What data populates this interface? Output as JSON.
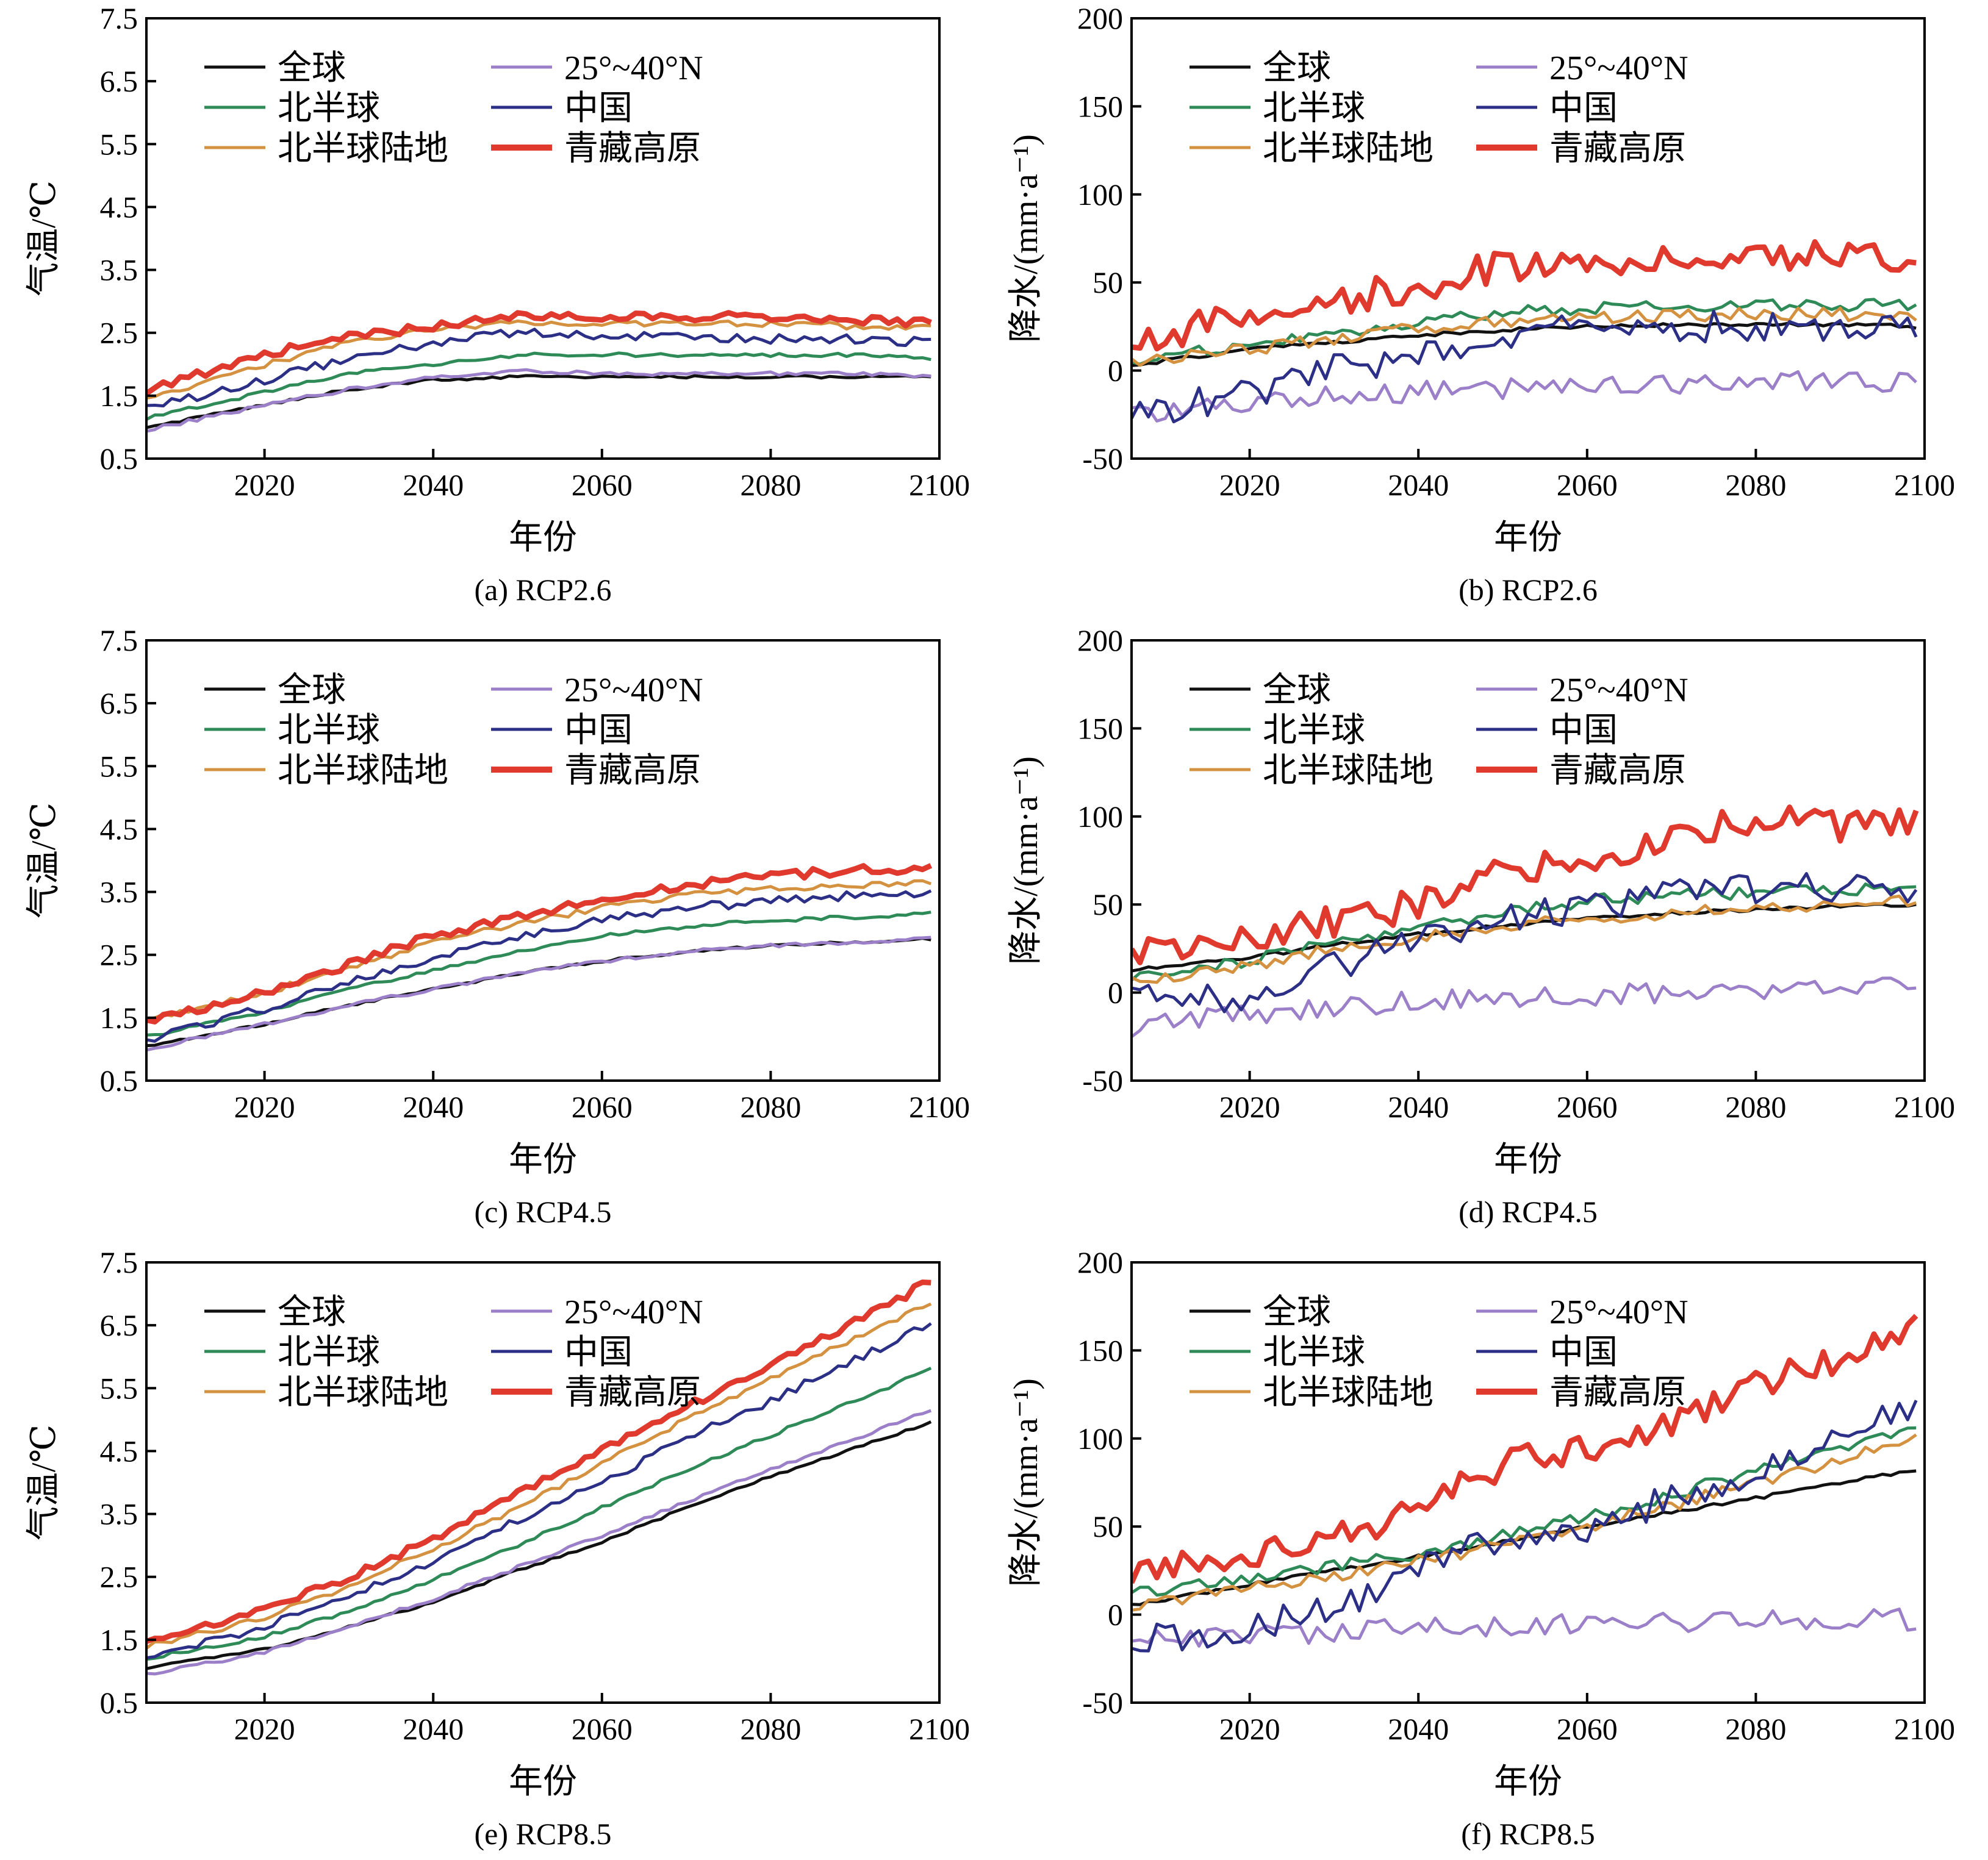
{
  "figure": {
    "panels": [
      "a",
      "b",
      "c",
      "d",
      "e",
      "f"
    ]
  },
  "colors": {
    "global": "#111111",
    "nh": "#2e8b57",
    "nh_land": "#d4913f",
    "lat_25_40": "#9b7fc9",
    "china": "#2c2f86",
    "tibet": "#e03a2f"
  },
  "legend": [
    {
      "key": "global",
      "label": "全球",
      "color": "#111111"
    },
    {
      "key": "lat_25_40",
      "label": "25°~40°N",
      "color": "#9b7fc9"
    },
    {
      "key": "nh",
      "label": "北半球",
      "color": "#2e8b57"
    },
    {
      "key": "china",
      "label": "中国",
      "color": "#2c2f86"
    },
    {
      "key": "nh_land",
      "label": "北半球陆地",
      "color": "#d4913f"
    },
    {
      "key": "tibet",
      "label": "青藏高原",
      "color": "#e03a2f"
    }
  ],
  "chart_data": [
    {
      "id": "a",
      "type": "line",
      "caption": "(a) RCP2.6",
      "xlabel": "年份",
      "ylabel": "气温/℃",
      "xlim": [
        2006,
        2100
      ],
      "ylim": [
        0.5,
        7.5
      ],
      "xticks": [
        2020,
        2040,
        2060,
        2080,
        2100
      ],
      "yticks": [
        "0.5",
        "1.5",
        "2.5",
        "3.5",
        "4.5",
        "5.5",
        "6.5",
        "7.5"
      ],
      "x": [
        2006,
        2020,
        2030,
        2040,
        2050,
        2060,
        2070,
        2080,
        2090,
        2099
      ],
      "series": [
        {
          "name": "全球",
          "key": "global",
          "values": [
            1.0,
            1.35,
            1.6,
            1.75,
            1.8,
            1.8,
            1.8,
            1.8,
            1.8,
            1.8
          ]
        },
        {
          "name": "北半球",
          "key": "nh",
          "values": [
            1.15,
            1.55,
            1.85,
            2.0,
            2.15,
            2.15,
            2.15,
            2.15,
            2.15,
            2.1
          ]
        },
        {
          "name": "北半球陆地",
          "key": "nh_land",
          "values": [
            1.45,
            2.0,
            2.35,
            2.55,
            2.65,
            2.65,
            2.65,
            2.65,
            2.6,
            2.6
          ]
        },
        {
          "name": "25°~40°N",
          "key": "lat_25_40",
          "values": [
            0.95,
            1.35,
            1.6,
            1.8,
            1.9,
            1.85,
            1.85,
            1.85,
            1.85,
            1.8
          ]
        },
        {
          "name": "中国",
          "key": "china",
          "values": [
            1.3,
            1.75,
            2.1,
            2.35,
            2.5,
            2.45,
            2.45,
            2.4,
            2.4,
            2.35
          ]
        },
        {
          "name": "青藏高原",
          "key": "tibet",
          "values": [
            1.6,
            2.15,
            2.45,
            2.6,
            2.75,
            2.75,
            2.75,
            2.75,
            2.7,
            2.65
          ]
        }
      ]
    },
    {
      "id": "b",
      "type": "line",
      "caption": "(b) RCP2.6",
      "xlabel": "年份",
      "ylabel": "降水/(mm·a⁻¹)",
      "xlim": [
        2006,
        2100
      ],
      "ylim": [
        -50,
        200
      ],
      "xticks": [
        2020,
        2040,
        2060,
        2080,
        2100
      ],
      "yticks": [
        "-50",
        "0",
        "50",
        "100",
        "150",
        "200"
      ],
      "x": [
        2006,
        2020,
        2030,
        2040,
        2050,
        2060,
        2070,
        2080,
        2090,
        2099
      ],
      "series": [
        {
          "name": "全球",
          "key": "global",
          "values": [
            3,
            12,
            16,
            20,
            23,
            25,
            26,
            26,
            26,
            25
          ]
        },
        {
          "name": "北半球",
          "key": "nh",
          "values": [
            5,
            15,
            22,
            28,
            33,
            35,
            36,
            38,
            37,
            37
          ]
        },
        {
          "name": "北半球陆地",
          "key": "nh_land",
          "values": [
            4,
            12,
            18,
            24,
            28,
            30,
            31,
            32,
            32,
            30
          ]
        },
        {
          "name": "25°~40°N",
          "key": "lat_25_40",
          "values": [
            -25,
            -18,
            -15,
            -12,
            -10,
            -8,
            -7,
            -6,
            -5,
            -7
          ]
        },
        {
          "name": "中国",
          "key": "china",
          "values": [
            -25,
            -12,
            0,
            10,
            20,
            23,
            25,
            25,
            25,
            25
          ]
        },
        {
          "name": "青藏高原",
          "key": "tibet",
          "values": [
            18,
            30,
            40,
            48,
            60,
            62,
            65,
            67,
            65,
            65
          ]
        }
      ]
    },
    {
      "id": "c",
      "type": "line",
      "caption": "(c) RCP4.5",
      "xlabel": "年份",
      "ylabel": "气温/℃",
      "xlim": [
        2006,
        2100
      ],
      "ylim": [
        0.5,
        7.5
      ],
      "xticks": [
        2020,
        2040,
        2060,
        2080,
        2100
      ],
      "yticks": [
        "0.5",
        "1.5",
        "2.5",
        "3.5",
        "4.5",
        "5.5",
        "6.5",
        "7.5"
      ],
      "x": [
        2006,
        2020,
        2030,
        2040,
        2050,
        2060,
        2070,
        2080,
        2090,
        2099
      ],
      "series": [
        {
          "name": "全球",
          "key": "global",
          "values": [
            1.05,
            1.4,
            1.7,
            1.95,
            2.2,
            2.4,
            2.55,
            2.65,
            2.7,
            2.75
          ]
        },
        {
          "name": "北半球",
          "key": "nh",
          "values": [
            1.2,
            1.6,
            1.95,
            2.25,
            2.55,
            2.8,
            2.95,
            3.05,
            3.1,
            3.15
          ]
        },
        {
          "name": "北半球陆地",
          "key": "nh_land",
          "values": [
            1.45,
            1.9,
            2.3,
            2.7,
            3.0,
            3.25,
            3.45,
            3.55,
            3.6,
            3.65
          ]
        },
        {
          "name": "25°~40°N",
          "key": "lat_25_40",
          "values": [
            1.0,
            1.4,
            1.7,
            1.95,
            2.2,
            2.4,
            2.55,
            2.65,
            2.7,
            2.75
          ]
        },
        {
          "name": "中国",
          "key": "china",
          "values": [
            1.15,
            1.65,
            2.05,
            2.45,
            2.8,
            3.05,
            3.25,
            3.35,
            3.45,
            3.5
          ]
        },
        {
          "name": "青藏高原",
          "key": "tibet",
          "values": [
            1.45,
            1.9,
            2.35,
            2.8,
            3.1,
            3.4,
            3.6,
            3.75,
            3.85,
            3.85
          ]
        }
      ]
    },
    {
      "id": "d",
      "type": "line",
      "caption": "(d) RCP4.5",
      "xlabel": "年份",
      "ylabel": "降水/(mm·a⁻¹)",
      "xlim": [
        2006,
        2100
      ],
      "ylim": [
        -50,
        200
      ],
      "xticks": [
        2020,
        2040,
        2060,
        2080,
        2100
      ],
      "yticks": [
        "-50",
        "0",
        "50",
        "100",
        "150",
        "200"
      ],
      "x": [
        2006,
        2020,
        2030,
        2040,
        2050,
        2060,
        2070,
        2080,
        2090,
        2099
      ],
      "series": [
        {
          "name": "全球",
          "key": "global",
          "values": [
            13,
            20,
            27,
            33,
            38,
            42,
            45,
            47,
            49,
            50
          ]
        },
        {
          "name": "北半球",
          "key": "nh",
          "values": [
            8,
            18,
            28,
            37,
            45,
            52,
            55,
            57,
            58,
            62
          ]
        },
        {
          "name": "北半球陆地",
          "key": "nh_land",
          "values": [
            6,
            15,
            25,
            32,
            38,
            42,
            45,
            48,
            50,
            52
          ]
        },
        {
          "name": "25°~40°N",
          "key": "lat_25_40",
          "values": [
            -20,
            -12,
            -8,
            -5,
            -3,
            -2,
            0,
            2,
            3,
            5
          ]
        },
        {
          "name": "中国",
          "key": "china",
          "values": [
            -5,
            -2,
            15,
            32,
            42,
            47,
            55,
            60,
            60,
            55
          ]
        },
        {
          "name": "青藏高原",
          "key": "tibet",
          "values": [
            25,
            32,
            40,
            50,
            70,
            75,
            85,
            100,
            95,
            95
          ]
        }
      ]
    },
    {
      "id": "e",
      "type": "line",
      "caption": "(e) RCP8.5",
      "xlabel": "年份",
      "ylabel": "气温/℃",
      "xlim": [
        2006,
        2100
      ],
      "ylim": [
        0.5,
        7.5
      ],
      "xticks": [
        2020,
        2040,
        2060,
        2080,
        2100
      ],
      "yticks": [
        "0.5",
        "1.5",
        "2.5",
        "3.5",
        "4.5",
        "5.5",
        "6.5",
        "7.5"
      ],
      "x": [
        2006,
        2020,
        2030,
        2040,
        2050,
        2060,
        2070,
        2080,
        2090,
        2099
      ],
      "series": [
        {
          "name": "全球",
          "key": "global",
          "values": [
            1.05,
            1.35,
            1.7,
            2.1,
            2.6,
            3.05,
            3.6,
            4.1,
            4.55,
            4.95
          ]
        },
        {
          "name": "北半球",
          "key": "nh",
          "values": [
            1.2,
            1.55,
            1.95,
            2.45,
            3.0,
            3.6,
            4.2,
            4.75,
            5.3,
            5.8
          ]
        },
        {
          "name": "北半球陆地",
          "key": "nh_land",
          "values": [
            1.4,
            1.85,
            2.35,
            2.95,
            3.6,
            4.3,
            5.0,
            5.65,
            6.3,
            6.85
          ]
        },
        {
          "name": "25°~40°N",
          "key": "lat_25_40",
          "values": [
            0.95,
            1.3,
            1.7,
            2.15,
            2.65,
            3.15,
            3.7,
            4.2,
            4.7,
            5.15
          ]
        },
        {
          "name": "中国",
          "key": "china",
          "values": [
            1.2,
            1.7,
            2.2,
            2.75,
            3.4,
            4.0,
            4.7,
            5.3,
            5.95,
            6.55
          ]
        },
        {
          "name": "青藏高原",
          "key": "tibet",
          "values": [
            1.45,
            1.95,
            2.5,
            3.1,
            3.8,
            4.5,
            5.2,
            5.85,
            6.55,
            7.2
          ]
        }
      ]
    },
    {
      "id": "f",
      "type": "line",
      "caption": "(f) RCP8.5",
      "xlabel": "年份",
      "ylabel": "降水/(mm·a⁻¹)",
      "xlim": [
        2006,
        2100
      ],
      "ylim": [
        -50,
        200
      ],
      "xticks": [
        2020,
        2040,
        2060,
        2080,
        2100
      ],
      "yticks": [
        "-50",
        "0",
        "50",
        "100",
        "150",
        "200"
      ],
      "x": [
        2006,
        2020,
        2030,
        2040,
        2050,
        2060,
        2070,
        2080,
        2090,
        2099
      ],
      "series": [
        {
          "name": "全球",
          "key": "global",
          "values": [
            5,
            17,
            25,
            33,
            41,
            50,
            58,
            66,
            75,
            82
          ]
        },
        {
          "name": "北半球",
          "key": "nh",
          "values": [
            12,
            20,
            28,
            35,
            45,
            55,
            68,
            82,
            95,
            108
          ]
        },
        {
          "name": "北半球陆地",
          "key": "nh_land",
          "values": [
            5,
            15,
            22,
            30,
            40,
            50,
            62,
            75,
            88,
            100
          ]
        },
        {
          "name": "25°~40°N",
          "key": "lat_25_40",
          "values": [
            -15,
            -12,
            -10,
            -8,
            -6,
            -5,
            -4,
            -3,
            -2,
            -3
          ]
        },
        {
          "name": "中国",
          "key": "china",
          "values": [
            -15,
            -8,
            5,
            25,
            45,
            50,
            65,
            80,
            100,
            120
          ]
        },
        {
          "name": "青藏高原",
          "key": "tibet",
          "values": [
            25,
            35,
            45,
            60,
            85,
            95,
            110,
            130,
            145,
            165
          ]
        }
      ]
    }
  ]
}
